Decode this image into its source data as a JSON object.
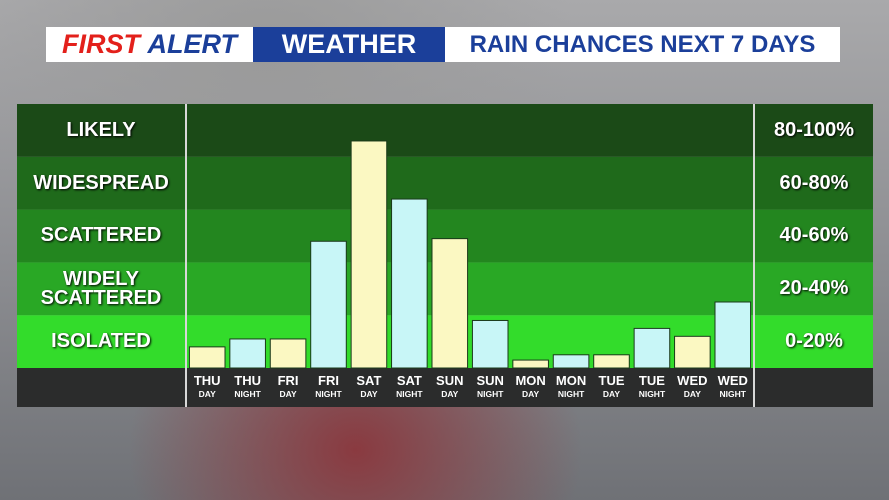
{
  "header": {
    "first": "FIRST",
    "alert": "ALERT",
    "weather": "WEATHER",
    "subtitle": "RAIN CHANCES NEXT 7 DAYS"
  },
  "chart_data": {
    "type": "bar",
    "categories": [
      "THU",
      "THU",
      "FRI",
      "FRI",
      "SAT",
      "SAT",
      "SUN",
      "SUN",
      "MON",
      "MON",
      "TUE",
      "TUE",
      "WED",
      "WED"
    ],
    "periods": [
      "DAY",
      "NIGHT",
      "DAY",
      "NIGHT",
      "DAY",
      "NIGHT",
      "DAY",
      "NIGHT",
      "DAY",
      "NIGHT",
      "DAY",
      "NIGHT",
      "DAY",
      "NIGHT"
    ],
    "values": [
      8,
      11,
      11,
      48,
      86,
      64,
      49,
      18,
      3,
      5,
      5,
      15,
      12,
      25
    ],
    "colors": [
      "#fbf8c2",
      "#c8f6f7",
      "#fbf8c2",
      "#c8f6f7",
      "#fbf8c2",
      "#c8f6f7",
      "#fbf8c2",
      "#c8f6f7",
      "#fbf8c2",
      "#c8f6f7",
      "#fbf8c2",
      "#c8f6f7",
      "#fbf8c2",
      "#c8f6f7"
    ],
    "ylim": [
      0,
      100
    ],
    "yticks": [
      0,
      20,
      40,
      60,
      80,
      100
    ],
    "bands": [
      {
        "label": "LIKELY",
        "range": "80-100%",
        "color": "#1b4a17"
      },
      {
        "label": "WIDESPREAD",
        "range": "60-80%",
        "color": "#1f6a1b"
      },
      {
        "label": "SCATTERED",
        "range": "40-60%",
        "color": "#23861f"
      },
      {
        "label": "WIDELY SCATTERED",
        "range": "20-40%",
        "color": "#29a825"
      },
      {
        "label": "ISOLATED",
        "range": "0-20%",
        "color": "#33dc2b"
      }
    ]
  }
}
